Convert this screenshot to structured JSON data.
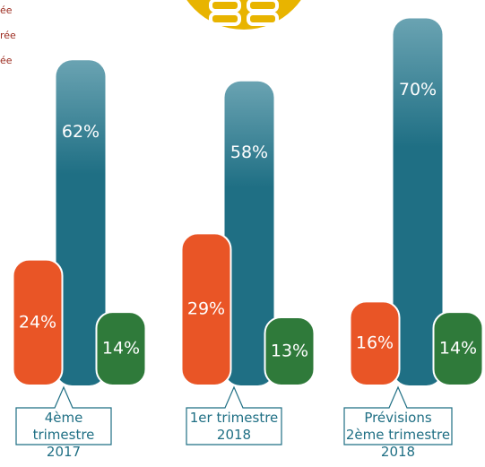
{
  "chart_data": {
    "type": "bar",
    "categories": [
      "4ème trimestre 2017",
      "1er trimestre 2018",
      "Prévisions 2ème trimestre 2018"
    ],
    "series": [
      {
        "name": "ée",
        "color": "#e95526",
        "values": [
          24,
          29,
          16
        ],
        "value_labels": [
          "24%",
          "29%",
          "16%"
        ]
      },
      {
        "name": "rée",
        "color": "#1f6f84",
        "values": [
          62,
          58,
          70
        ],
        "value_labels": [
          "62%",
          "58%",
          "70%"
        ]
      },
      {
        "name": "ée",
        "color": "#2f7a3a",
        "values": [
          14,
          13,
          14
        ],
        "value_labels": [
          "14%",
          "13%",
          "14%"
        ]
      }
    ]
  }
}
